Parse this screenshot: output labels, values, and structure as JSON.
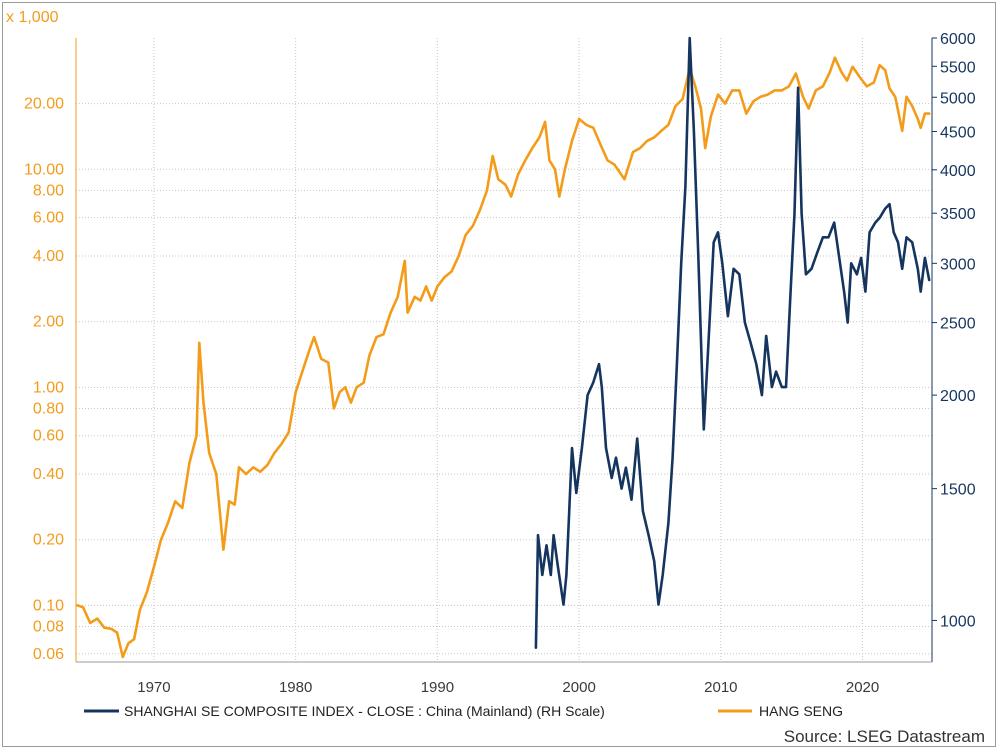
{
  "chart_data": {
    "type": "line",
    "left_axis": {
      "unit_label": "x 1,000",
      "scale": "log",
      "range": [
        0.055,
        40
      ],
      "ticks": [
        {
          "value": 20,
          "label": "20.00"
        },
        {
          "value": 10,
          "label": "10.00"
        },
        {
          "value": 8,
          "label": "8.00"
        },
        {
          "value": 6,
          "label": "6.00"
        },
        {
          "value": 4,
          "label": "4.00"
        },
        {
          "value": 2,
          "label": "2.00"
        },
        {
          "value": 1,
          "label": "1.00"
        },
        {
          "value": 0.8,
          "label": "0.80"
        },
        {
          "value": 0.6,
          "label": "0.60"
        },
        {
          "value": 0.4,
          "label": "0.40"
        },
        {
          "value": 0.2,
          "label": "0.20"
        },
        {
          "value": 0.1,
          "label": "0.10"
        },
        {
          "value": 0.08,
          "label": "0.08"
        },
        {
          "value": 0.06,
          "label": "0.06"
        }
      ]
    },
    "right_axis": {
      "scale": "log",
      "range": [
        880,
        6000
      ],
      "ticks": [
        {
          "value": 6000,
          "label": "6000"
        },
        {
          "value": 5500,
          "label": "5500"
        },
        {
          "value": 5000,
          "label": "5000"
        },
        {
          "value": 4500,
          "label": "4500"
        },
        {
          "value": 4000,
          "label": "4000"
        },
        {
          "value": 3500,
          "label": "3500"
        },
        {
          "value": 3000,
          "label": "3000"
        },
        {
          "value": 2500,
          "label": "2500"
        },
        {
          "value": 2000,
          "label": "2000"
        },
        {
          "value": 1500,
          "label": "1500"
        },
        {
          "value": 1000,
          "label": "1000"
        }
      ]
    },
    "x_axis": {
      "range": [
        1964.5,
        2024.9
      ],
      "ticks": [
        {
          "value": 1970,
          "label": "1970"
        },
        {
          "value": 1980,
          "label": "1980"
        },
        {
          "value": 1990,
          "label": "1990"
        },
        {
          "value": 2000,
          "label": "2000"
        },
        {
          "value": 2010,
          "label": "2010"
        },
        {
          "value": 2020,
          "label": "2020"
        }
      ]
    },
    "grid": true,
    "legend_position": "bottom",
    "series": [
      {
        "name": "SHANGHAI SE COMPOSITE INDEX - CLOSE : China (Mainland) (RH Scale)",
        "axis": "right",
        "color": "#15355f",
        "points": [
          [
            1996.95,
            920
          ],
          [
            1997.1,
            1300
          ],
          [
            1997.4,
            1150
          ],
          [
            1997.7,
            1260
          ],
          [
            1998.0,
            1150
          ],
          [
            1998.2,
            1300
          ],
          [
            1998.5,
            1180
          ],
          [
            1998.9,
            1050
          ],
          [
            1999.1,
            1150
          ],
          [
            1999.5,
            1700
          ],
          [
            1999.8,
            1480
          ],
          [
            2000.2,
            1700
          ],
          [
            2000.6,
            2000
          ],
          [
            2001.0,
            2080
          ],
          [
            2001.4,
            2200
          ],
          [
            2001.6,
            2050
          ],
          [
            2001.9,
            1700
          ],
          [
            2002.3,
            1550
          ],
          [
            2002.6,
            1650
          ],
          [
            2003.0,
            1500
          ],
          [
            2003.3,
            1600
          ],
          [
            2003.7,
            1450
          ],
          [
            2004.1,
            1750
          ],
          [
            2004.5,
            1400
          ],
          [
            2004.9,
            1300
          ],
          [
            2005.3,
            1200
          ],
          [
            2005.6,
            1050
          ],
          [
            2005.9,
            1150
          ],
          [
            2006.3,
            1350
          ],
          [
            2006.6,
            1650
          ],
          [
            2006.9,
            2200
          ],
          [
            2007.2,
            3000
          ],
          [
            2007.5,
            3800
          ],
          [
            2007.8,
            6000
          ],
          [
            2008.1,
            4500
          ],
          [
            2008.4,
            3100
          ],
          [
            2008.8,
            1800
          ],
          [
            2009.1,
            2300
          ],
          [
            2009.5,
            3200
          ],
          [
            2009.8,
            3300
          ],
          [
            2010.1,
            3000
          ],
          [
            2010.5,
            2550
          ],
          [
            2010.9,
            2950
          ],
          [
            2011.3,
            2900
          ],
          [
            2011.7,
            2500
          ],
          [
            2012.1,
            2350
          ],
          [
            2012.5,
            2200
          ],
          [
            2012.9,
            2000
          ],
          [
            2013.2,
            2400
          ],
          [
            2013.6,
            2050
          ],
          [
            2013.9,
            2150
          ],
          [
            2014.3,
            2050
          ],
          [
            2014.6,
            2050
          ],
          [
            2014.9,
            2700
          ],
          [
            2015.2,
            3500
          ],
          [
            2015.45,
            5150
          ],
          [
            2015.7,
            3500
          ],
          [
            2016.0,
            2900
          ],
          [
            2016.4,
            2950
          ],
          [
            2016.8,
            3100
          ],
          [
            2017.2,
            3250
          ],
          [
            2017.6,
            3250
          ],
          [
            2018.0,
            3400
          ],
          [
            2018.3,
            3100
          ],
          [
            2018.7,
            2750
          ],
          [
            2018.95,
            2500
          ],
          [
            2019.2,
            3000
          ],
          [
            2019.6,
            2900
          ],
          [
            2019.9,
            3050
          ],
          [
            2020.2,
            2750
          ],
          [
            2020.5,
            3300
          ],
          [
            2020.9,
            3400
          ],
          [
            2021.2,
            3450
          ],
          [
            2021.6,
            3550
          ],
          [
            2021.9,
            3600
          ],
          [
            2022.2,
            3300
          ],
          [
            2022.5,
            3200
          ],
          [
            2022.8,
            2950
          ],
          [
            2023.1,
            3250
          ],
          [
            2023.5,
            3200
          ],
          [
            2023.9,
            2950
          ],
          [
            2024.1,
            2750
          ],
          [
            2024.4,
            3050
          ],
          [
            2024.7,
            2850
          ]
        ]
      },
      {
        "name": "HANG SENG",
        "axis": "left",
        "color": "#f39c1a",
        "points": [
          [
            1964.6,
            0.1
          ],
          [
            1965.0,
            0.098
          ],
          [
            1965.5,
            0.083
          ],
          [
            1966.0,
            0.087
          ],
          [
            1966.5,
            0.079
          ],
          [
            1967.0,
            0.078
          ],
          [
            1967.4,
            0.075
          ],
          [
            1967.8,
            0.058
          ],
          [
            1968.2,
            0.067
          ],
          [
            1968.6,
            0.07
          ],
          [
            1969.0,
            0.095
          ],
          [
            1969.5,
            0.115
          ],
          [
            1970.0,
            0.15
          ],
          [
            1970.5,
            0.2
          ],
          [
            1971.0,
            0.24
          ],
          [
            1971.5,
            0.3
          ],
          [
            1972.0,
            0.28
          ],
          [
            1972.5,
            0.45
          ],
          [
            1973.0,
            0.6
          ],
          [
            1973.2,
            1.6
          ],
          [
            1973.5,
            0.85
          ],
          [
            1973.9,
            0.5
          ],
          [
            1974.4,
            0.4
          ],
          [
            1974.9,
            0.18
          ],
          [
            1975.3,
            0.3
          ],
          [
            1975.7,
            0.29
          ],
          [
            1976.0,
            0.43
          ],
          [
            1976.5,
            0.4
          ],
          [
            1977.0,
            0.43
          ],
          [
            1977.5,
            0.41
          ],
          [
            1978.0,
            0.44
          ],
          [
            1978.5,
            0.5
          ],
          [
            1979.0,
            0.55
          ],
          [
            1979.5,
            0.62
          ],
          [
            1980.0,
            0.95
          ],
          [
            1980.5,
            1.2
          ],
          [
            1981.0,
            1.5
          ],
          [
            1981.3,
            1.7
          ],
          [
            1981.8,
            1.35
          ],
          [
            1982.3,
            1.3
          ],
          [
            1982.7,
            0.8
          ],
          [
            1983.1,
            0.95
          ],
          [
            1983.5,
            1.0
          ],
          [
            1983.9,
            0.85
          ],
          [
            1984.3,
            1.0
          ],
          [
            1984.8,
            1.05
          ],
          [
            1985.2,
            1.4
          ],
          [
            1985.7,
            1.7
          ],
          [
            1986.2,
            1.75
          ],
          [
            1986.7,
            2.2
          ],
          [
            1987.2,
            2.6
          ],
          [
            1987.7,
            3.8
          ],
          [
            1987.9,
            2.2
          ],
          [
            1988.4,
            2.6
          ],
          [
            1988.8,
            2.5
          ],
          [
            1989.2,
            2.9
          ],
          [
            1989.6,
            2.5
          ],
          [
            1990.0,
            2.9
          ],
          [
            1990.5,
            3.2
          ],
          [
            1991.0,
            3.4
          ],
          [
            1991.5,
            4.0
          ],
          [
            1992.0,
            5.0
          ],
          [
            1992.5,
            5.5
          ],
          [
            1993.0,
            6.5
          ],
          [
            1993.5,
            8.0
          ],
          [
            1993.9,
            11.5
          ],
          [
            1994.3,
            9.0
          ],
          [
            1994.8,
            8.5
          ],
          [
            1995.2,
            7.5
          ],
          [
            1995.7,
            9.5
          ],
          [
            1996.2,
            11.0
          ],
          [
            1996.7,
            12.5
          ],
          [
            1997.2,
            14.0
          ],
          [
            1997.6,
            16.5
          ],
          [
            1997.9,
            11.0
          ],
          [
            1998.3,
            10.0
          ],
          [
            1998.6,
            7.5
          ],
          [
            1999.0,
            10.0
          ],
          [
            1999.5,
            13.5
          ],
          [
            2000.0,
            17.0
          ],
          [
            2000.5,
            16.0
          ],
          [
            2001.0,
            15.5
          ],
          [
            2001.5,
            13.0
          ],
          [
            2002.0,
            11.0
          ],
          [
            2002.5,
            10.5
          ],
          [
            2003.2,
            9.0
          ],
          [
            2003.8,
            12.0
          ],
          [
            2004.3,
            12.5
          ],
          [
            2004.8,
            13.5
          ],
          [
            2005.3,
            14.0
          ],
          [
            2005.8,
            15.0
          ],
          [
            2006.3,
            16.0
          ],
          [
            2006.8,
            19.5
          ],
          [
            2007.3,
            21.0
          ],
          [
            2007.8,
            29.0
          ],
          [
            2008.2,
            24.0
          ],
          [
            2008.6,
            19.0
          ],
          [
            2008.9,
            12.5
          ],
          [
            2009.3,
            17.5
          ],
          [
            2009.8,
            22.0
          ],
          [
            2010.3,
            20.0
          ],
          [
            2010.8,
            23.0
          ],
          [
            2011.3,
            23.0
          ],
          [
            2011.8,
            18.0
          ],
          [
            2012.3,
            20.5
          ],
          [
            2012.8,
            21.5
          ],
          [
            2013.3,
            22.0
          ],
          [
            2013.8,
            23.0
          ],
          [
            2014.3,
            23.0
          ],
          [
            2014.8,
            24.0
          ],
          [
            2015.3,
            27.5
          ],
          [
            2015.8,
            21.5
          ],
          [
            2016.2,
            19.0
          ],
          [
            2016.7,
            23.0
          ],
          [
            2017.2,
            24.0
          ],
          [
            2017.7,
            28.0
          ],
          [
            2018.05,
            32.5
          ],
          [
            2018.5,
            28.0
          ],
          [
            2018.9,
            25.5
          ],
          [
            2019.3,
            29.5
          ],
          [
            2019.8,
            26.5
          ],
          [
            2020.3,
            24.0
          ],
          [
            2020.8,
            25.0
          ],
          [
            2021.2,
            30.0
          ],
          [
            2021.6,
            28.5
          ],
          [
            2021.9,
            23.5
          ],
          [
            2022.3,
            21.5
          ],
          [
            2022.8,
            15.0
          ],
          [
            2023.1,
            21.5
          ],
          [
            2023.5,
            19.5
          ],
          [
            2023.9,
            17.0
          ],
          [
            2024.1,
            15.5
          ],
          [
            2024.4,
            18.0
          ],
          [
            2024.7,
            18.0
          ]
        ]
      }
    ]
  },
  "legend": {
    "shanghai_label": "SHANGHAI SE COMPOSITE INDEX - CLOSE : China (Mainland) (RH Scale)",
    "hangseng_label": "HANG SENG"
  },
  "source": "Source: LSEG Datastream",
  "colors": {
    "shanghai": "#15355f",
    "hangseng": "#f39c1a",
    "grid": "#c8c8c8"
  }
}
